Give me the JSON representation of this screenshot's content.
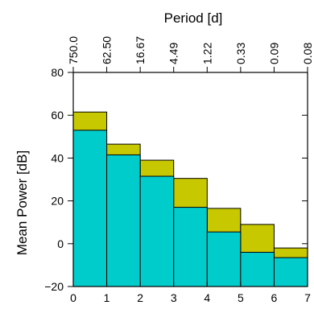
{
  "chart_data": {
    "type": "bar",
    "title": "",
    "xlabel": "",
    "ylabel": "Mean Power [dB]",
    "top_axis_label": "Period [d]",
    "xlim": [
      0,
      7
    ],
    "ylim": [
      -20,
      80
    ],
    "x_ticks": [
      "0",
      "1",
      "2",
      "3",
      "4",
      "5",
      "6",
      "7"
    ],
    "y_ticks": [
      "−20",
      "0",
      "20",
      "40",
      "60",
      "80"
    ],
    "top_ticks": [
      "750.0",
      "62.50",
      "16.67",
      "4.49",
      "1.22",
      "0.33",
      "0.09",
      "0.08"
    ],
    "grid": false,
    "bins": [
      {
        "x0": 0,
        "x1": 1
      },
      {
        "x0": 1,
        "x1": 2
      },
      {
        "x0": 2,
        "x1": 3
      },
      {
        "x0": 3,
        "x1": 4
      },
      {
        "x0": 4,
        "x1": 5
      },
      {
        "x0": 5,
        "x1": 6
      },
      {
        "x0": 6,
        "x1": 7
      }
    ],
    "series": [
      {
        "color": "#00cccc",
        "values": [
          53,
          41.5,
          31.5,
          17,
          5.5,
          -4,
          -6.5
        ]
      },
      {
        "color": "#c8c800",
        "values": [
          61.5,
          46.5,
          39,
          30.5,
          16.5,
          9,
          -2
        ]
      }
    ]
  }
}
